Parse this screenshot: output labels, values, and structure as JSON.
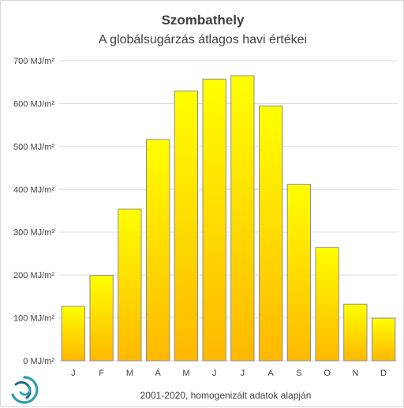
{
  "chart_data": {
    "type": "bar",
    "title": "Szombathely",
    "subtitle": "A globálsugárzás átlagos havi értékei",
    "categories": [
      "J",
      "F",
      "M",
      "Á",
      "M",
      "J",
      "J",
      "A",
      "S",
      "O",
      "N",
      "D"
    ],
    "values": [
      127,
      199,
      354,
      516,
      629,
      657,
      665,
      594,
      411,
      264,
      132,
      99
    ],
    "ylim": [
      0,
      700
    ],
    "ytick_values": [
      0,
      100,
      200,
      300,
      400,
      500,
      600,
      700
    ],
    "ytick_labels": [
      "0 MJ/m²",
      "100 MJ/m²",
      "200 MJ/m²",
      "300 MJ/m²",
      "400 MJ/m²",
      "500 MJ/m²",
      "600 MJ/m²",
      "700 MJ/m²"
    ],
    "grid": true,
    "bar_gradient": [
      "#ffff00",
      "#ffb800"
    ],
    "bar_edge": "#8c8c8c",
    "footnote": "2001-2020,  homogenizált adatok alapján"
  },
  "logo": {
    "colors": [
      "#2e9fb0",
      "#1c6f86"
    ],
    "icon": "swirl-logo-icon"
  }
}
